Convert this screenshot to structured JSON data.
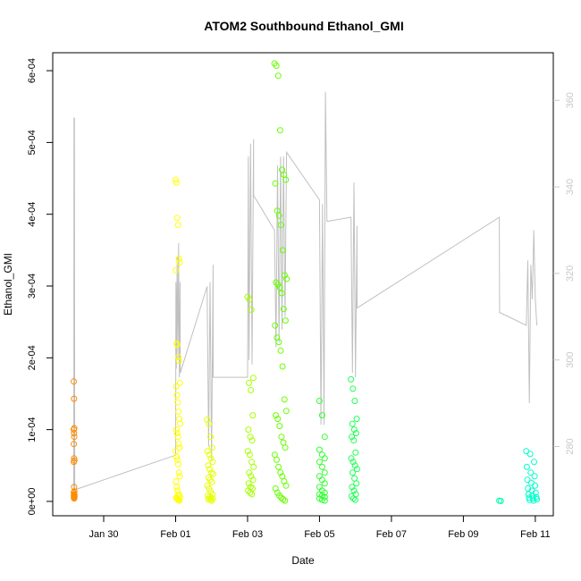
{
  "chart_data": {
    "type": "scatter",
    "title": "ATOM2 Southbound Ethanol_GMI",
    "xlabel": "Date",
    "ylabel": "Ethanol_GMI",
    "x_ticks": [
      "Jan 30",
      "Feb 01",
      "Feb 03",
      "Feb 05",
      "Feb 07",
      "Feb 09",
      "Feb 11"
    ],
    "y_ticks": [
      "0e+00",
      "1e-04",
      "2e-04",
      "3e-04",
      "4e-04",
      "5e-04",
      "6e-04"
    ],
    "y_right_ticks": [
      "280",
      "300",
      "320",
      "340",
      "360"
    ],
    "xlim": [
      "2017-01-28T14:00",
      "2017-02-11T12:00"
    ],
    "ylim": [
      -2e-05,
      0.000625
    ],
    "y_right_lim": [
      264,
      371
    ],
    "grid": false,
    "colors": {
      "line": "#c0c0c0",
      "right_axis": "#c8c8c8"
    },
    "groups": [
      {
        "color": "#ff8c00",
        "x_range": [
          "2017-01-29T04:00",
          "2017-01-29T04:30"
        ],
        "values": [
          0.000167,
          0.000143,
          0.000102,
          0.0001,
          9.5e-05,
          9e-05,
          8e-05,
          6e-05,
          5.7e-05,
          5.5e-05,
          2e-05,
          1.4e-05,
          1.2e-05,
          1e-05,
          9e-06,
          8e-06,
          7e-06,
          6e-06,
          5e-06,
          4e-06
        ]
      },
      {
        "color": "#ffff00",
        "x_range": [
          "2017-02-01T00:00",
          "2017-02-01T03:00"
        ],
        "values": [
          0.000448,
          0.000444,
          0.000395,
          0.000385,
          0.000338,
          0.000333,
          0.000322,
          0.00022,
          0.000218,
          0.000201,
          0.000196,
          0.000165,
          0.00016,
          0.000148,
          0.000138,
          0.000125,
          0.000115,
          0.000108,
          0.0001,
          9.5e-05,
          9e-05,
          8e-05,
          7.5e-05,
          7e-05,
          6.2e-05,
          5.8e-05,
          5.2e-05,
          4e-05,
          3.5e-05,
          2.8e-05,
          2e-05,
          1.5e-05,
          1e-05,
          8e-06,
          6e-06,
          5e-06,
          4e-06,
          3e-06,
          2e-06,
          1e-06
        ]
      },
      {
        "color": "#e6ff00",
        "x_range": [
          "2017-02-01T21:00",
          "2017-02-02T01:00"
        ],
        "values": [
          0.000114,
          0.000108,
          9e-05,
          7.5e-05,
          7e-05,
          6.5e-05,
          6e-05,
          5.5e-05,
          5e-05,
          4.5e-05,
          4e-05,
          3.8e-05,
          3.3e-05,
          3e-05,
          2.7e-05,
          2.2e-05,
          1.8e-05,
          1.4e-05,
          1e-05,
          8e-06,
          6e-06,
          5e-06,
          4e-06,
          3e-06,
          2e-06,
          1e-06
        ]
      },
      {
        "color": "#a6ff00",
        "x_range": [
          "2017-02-03T00:00",
          "2017-02-03T04:00"
        ],
        "values": [
          0.000285,
          0.000281,
          0.000267,
          0.000172,
          0.000165,
          0.000155,
          0.00012,
          0.0001,
          9e-05,
          8.5e-05,
          7e-05,
          6.5e-05,
          5.5e-05,
          4.8e-05,
          4e-05,
          3.5e-05,
          3e-05,
          2.5e-05,
          2e-05,
          1.8e-05,
          1.5e-05,
          1.2e-05,
          1e-05
        ]
      },
      {
        "color": "#66ff00",
        "x_range": [
          "2017-02-03T18:00",
          "2017-02-04T02:00"
        ],
        "values": [
          0.00061,
          0.000607,
          0.000593,
          0.000517,
          0.000462,
          0.000455,
          0.000448,
          0.000443,
          0.000405,
          0.000398,
          0.000385,
          0.00035,
          0.000315,
          0.00031,
          0.000305,
          0.000302,
          0.000298,
          0.00029,
          0.000268,
          0.000252,
          0.000245,
          0.000228,
          0.000222,
          0.00021,
          0.000188,
          0.000142,
          0.000126,
          0.00012,
          0.000115,
          0.000105,
          9e-05,
          8.2e-05,
          7.5e-05,
          6.5e-05,
          5.8e-05,
          4.8e-05,
          4e-05,
          3.5e-05,
          2.8e-05,
          2.2e-05,
          1.8e-05,
          1.2e-05,
          8e-06,
          5e-06,
          3e-06,
          1e-06
        ]
      },
      {
        "color": "#33ff33",
        "x_range": [
          "2017-02-05T00:00",
          "2017-02-05T05:00"
        ],
        "values": [
          0.00014,
          0.00012,
          9e-05,
          7.2e-05,
          6.5e-05,
          6e-05,
          5.5e-05,
          4.8e-05,
          4e-05,
          3.5e-05,
          3e-05,
          2.5e-05,
          2e-05,
          1.5e-05,
          1.2e-05,
          1e-05,
          8e-06,
          6e-06,
          4e-06,
          2e-06,
          1e-06
        ]
      },
      {
        "color": "#22ff55",
        "x_range": [
          "2017-02-05T21:00",
          "2017-02-06T01:00"
        ],
        "values": [
          0.00017,
          0.000157,
          0.00014,
          0.000115,
          0.000108,
          0.0001,
          9.5e-05,
          9e-05,
          8.5e-05,
          6.8e-05,
          6e-05,
          5.5e-05,
          5e-05,
          4.5e-05,
          4e-05,
          3.2e-05,
          2.5e-05,
          2e-05,
          1.5e-05,
          1e-05,
          7e-06,
          4e-06,
          2e-06
        ]
      },
      {
        "color": "#00ffaa",
        "x_range": [
          "2017-02-10T00:00",
          "2017-02-10T01:00"
        ],
        "values": [
          1e-06,
          5e-07
        ]
      },
      {
        "color": "#00ffcc",
        "x_range": [
          "2017-02-10T18:00",
          "2017-02-11T01:00"
        ],
        "values": [
          7e-05,
          6.6e-05,
          5.5e-05,
          4.8e-05,
          4e-05,
          3.5e-05,
          3e-05,
          2.6e-05,
          2.2e-05,
          1.8e-05,
          1.5e-05,
          1.2e-05,
          1e-05,
          8e-06,
          6e-06,
          5e-06,
          4e-06,
          3e-06,
          2e-06,
          1e-06
        ]
      }
    ],
    "line_right_axis": [
      [
        "2017-01-29T04:00",
        269
      ],
      [
        "2017-01-29T04:10",
        356
      ],
      [
        "2017-01-29T04:20",
        268
      ],
      [
        "2017-01-29T04:30",
        356
      ],
      [
        "2017-01-29T04:40",
        270
      ],
      [
        "2017-02-01T00:00",
        278
      ],
      [
        "2017-02-01T00:10",
        318
      ],
      [
        "2017-02-01T00:30",
        298
      ],
      [
        "2017-02-01T01:00",
        324
      ],
      [
        "2017-02-01T01:30",
        300
      ],
      [
        "2017-02-01T02:00",
        327
      ],
      [
        "2017-02-01T02:30",
        296
      ],
      [
        "2017-02-01T03:00",
        318
      ],
      [
        "2017-02-01T03:05",
        297
      ],
      [
        "2017-02-01T21:00",
        317
      ],
      [
        "2017-02-01T22:00",
        280
      ],
      [
        "2017-02-01T23:00",
        318
      ],
      [
        "2017-02-02T00:00",
        277
      ],
      [
        "2017-02-02T01:00",
        322
      ],
      [
        "2017-02-02T01:05",
        296
      ],
      [
        "2017-02-03T00:00",
        296
      ],
      [
        "2017-02-03T00:30",
        347
      ],
      [
        "2017-02-03T01:00",
        300
      ],
      [
        "2017-02-03T02:00",
        350
      ],
      [
        "2017-02-03T03:00",
        299
      ],
      [
        "2017-02-03T04:00",
        351
      ],
      [
        "2017-02-03T04:05",
        338
      ],
      [
        "2017-02-03T18:00",
        330
      ],
      [
        "2017-02-03T19:00",
        303
      ],
      [
        "2017-02-03T20:00",
        345
      ],
      [
        "2017-02-03T21:00",
        304
      ],
      [
        "2017-02-03T22:00",
        347
      ],
      [
        "2017-02-03T23:00",
        307
      ],
      [
        "2017-02-04T00:00",
        347
      ],
      [
        "2017-02-04T01:00",
        310
      ],
      [
        "2017-02-04T02:00",
        348
      ],
      [
        "2017-02-05T00:00",
        337
      ],
      [
        "2017-02-05T01:00",
        285
      ],
      [
        "2017-02-05T02:00",
        336
      ],
      [
        "2017-02-05T03:00",
        285
      ],
      [
        "2017-02-05T04:00",
        362
      ],
      [
        "2017-02-05T05:00",
        332
      ],
      [
        "2017-02-05T21:00",
        333
      ],
      [
        "2017-02-05T22:00",
        297
      ],
      [
        "2017-02-05T23:00",
        341
      ],
      [
        "2017-02-06T00:00",
        296
      ],
      [
        "2017-02-06T01:00",
        331
      ],
      [
        "2017-02-06T01:05",
        312
      ],
      [
        "2017-02-10T00:00",
        333
      ],
      [
        "2017-02-10T00:10",
        311
      ],
      [
        "2017-02-10T18:00",
        308
      ],
      [
        "2017-02-10T19:00",
        323
      ],
      [
        "2017-02-10T20:00",
        290
      ],
      [
        "2017-02-10T21:00",
        322
      ],
      [
        "2017-02-10T22:00",
        314
      ],
      [
        "2017-02-10T23:00",
        330
      ],
      [
        "2017-02-11T00:00",
        314
      ],
      [
        "2017-02-11T01:00",
        308
      ]
    ]
  }
}
